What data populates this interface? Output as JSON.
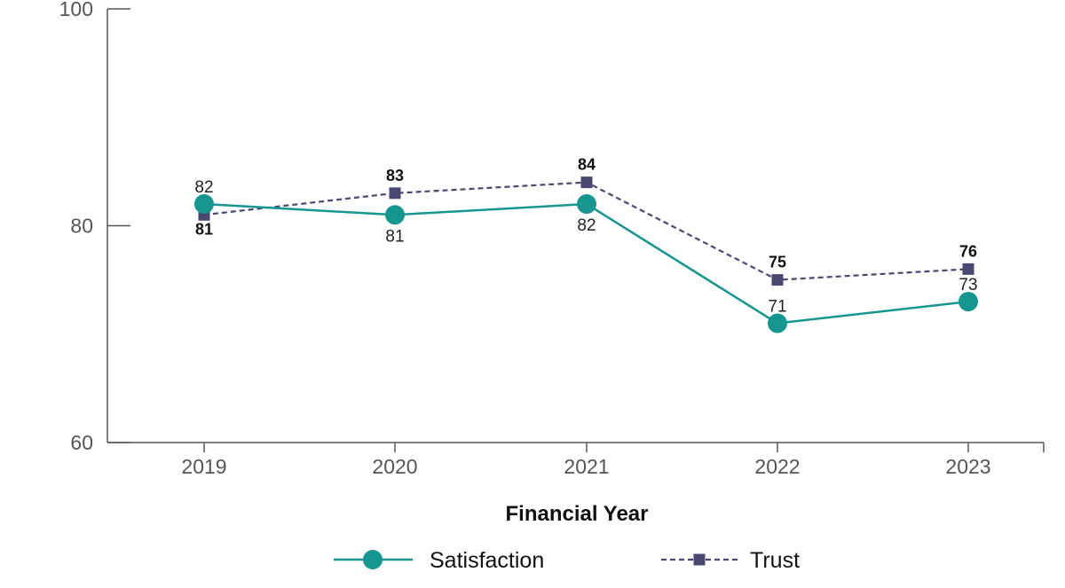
{
  "chart_data": {
    "type": "line",
    "title": "",
    "xlabel": "Financial Year",
    "ylabel": "",
    "categories": [
      "2019",
      "2020",
      "2021",
      "2022",
      "2023"
    ],
    "ylim": [
      60,
      100
    ],
    "yticks": [
      "60",
      "80",
      "100"
    ],
    "grid": false,
    "legend_position": "bottom",
    "series": [
      {
        "name": "Satisfaction",
        "values": [
          82,
          81,
          82,
          71,
          73
        ],
        "data_labels": [
          "82",
          "81",
          "82",
          "71",
          "73"
        ],
        "color": "#17958f",
        "line_style": "solid",
        "marker": "circle",
        "label_weight": "normal"
      },
      {
        "name": "Trust",
        "values": [
          81,
          83,
          84,
          75,
          76
        ],
        "data_labels": [
          "81",
          "83",
          "84",
          "75",
          "76"
        ],
        "color": "#4a4773",
        "line_style": "dashed",
        "marker": "square",
        "label_weight": "bold"
      }
    ]
  }
}
